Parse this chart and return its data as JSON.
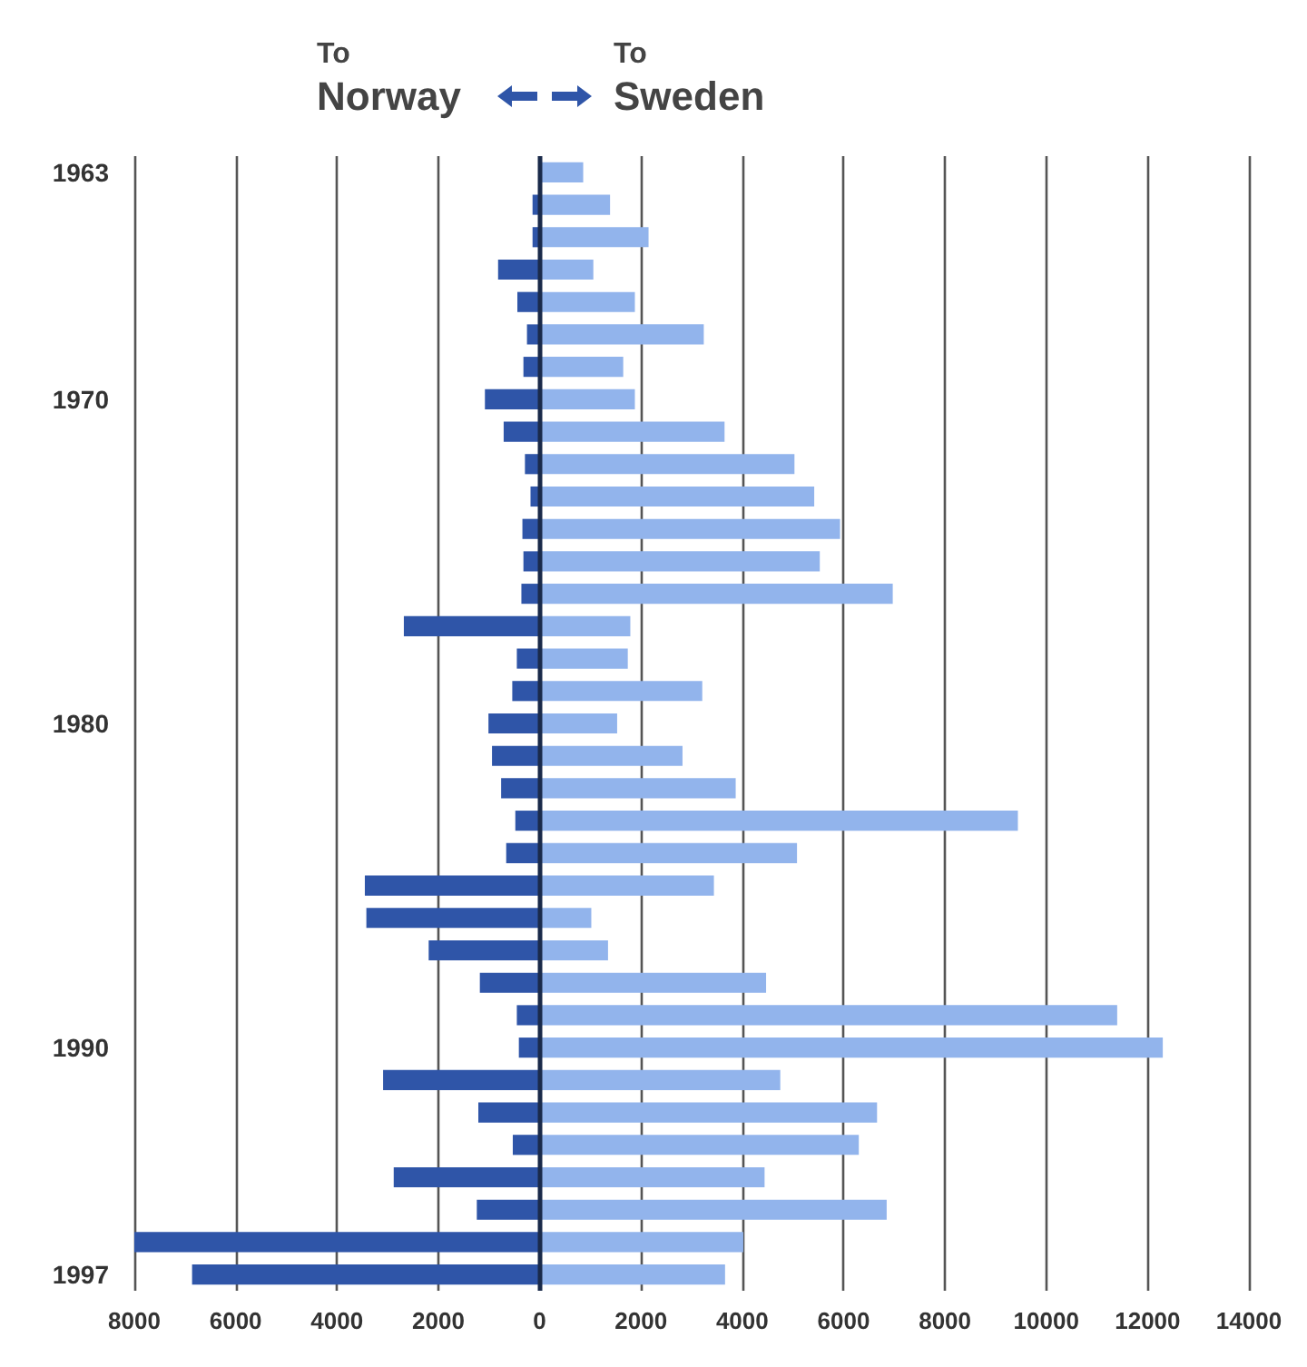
{
  "chart_data": {
    "type": "bar",
    "orientation": "horizontal",
    "stacked": true,
    "annotations": [
      "To\nNorway",
      "To\nSweden"
    ],
    "categories": [
      "1963",
      null,
      null,
      null,
      null,
      null,
      null,
      "1970",
      null,
      null,
      null,
      null,
      null,
      null,
      null,
      null,
      null,
      "1980",
      null,
      null,
      null,
      null,
      null,
      null,
      null,
      null,
      null,
      "1990",
      null,
      null,
      null,
      null,
      null,
      null,
      "1997"
    ],
    "series": [
      {
        "color": "#2f55a8",
        "values": [
          0,
          -140,
          -140,
          -820,
          -440,
          -250,
          -320,
          -1080,
          -710,
          -290,
          -180,
          -340,
          -320,
          -360,
          -2680,
          -450,
          -540,
          -1010,
          -940,
          -760,
          -480,
          -660,
          -3450,
          -3420,
          -2190,
          -1180,
          -450,
          -410,
          -3090,
          -1210,
          -530,
          -2880,
          -1240,
          -8000,
          -6860
        ]
      },
      {
        "color": "#92b4ec",
        "values": [
          860,
          1390,
          2150,
          1060,
          1880,
          3240,
          1650,
          1880,
          3650,
          5030,
          5420,
          5930,
          5530,
          6970,
          1790,
          1740,
          3210,
          1530,
          2820,
          3870,
          9440,
          5080,
          3440,
          1020,
          1350,
          4470,
          11400,
          12300,
          4750,
          6660,
          6300,
          4440,
          6850,
          4020,
          3660
        ]
      }
    ],
    "xlim": [
      -8000,
      14000
    ],
    "xticks": [
      {
        "value": -8000,
        "label": "8000"
      },
      {
        "value": -6000,
        "label": "6000"
      },
      {
        "value": -4000,
        "label": "4000"
      },
      {
        "value": -2000,
        "label": "2000"
      },
      0,
      2000,
      4000,
      6000,
      8000,
      10000,
      12000,
      14000
    ],
    "ref_lines": [
      {
        "axis": "x",
        "value": 0,
        "color": "#1a2a4a"
      }
    ],
    "grid": "x"
  }
}
